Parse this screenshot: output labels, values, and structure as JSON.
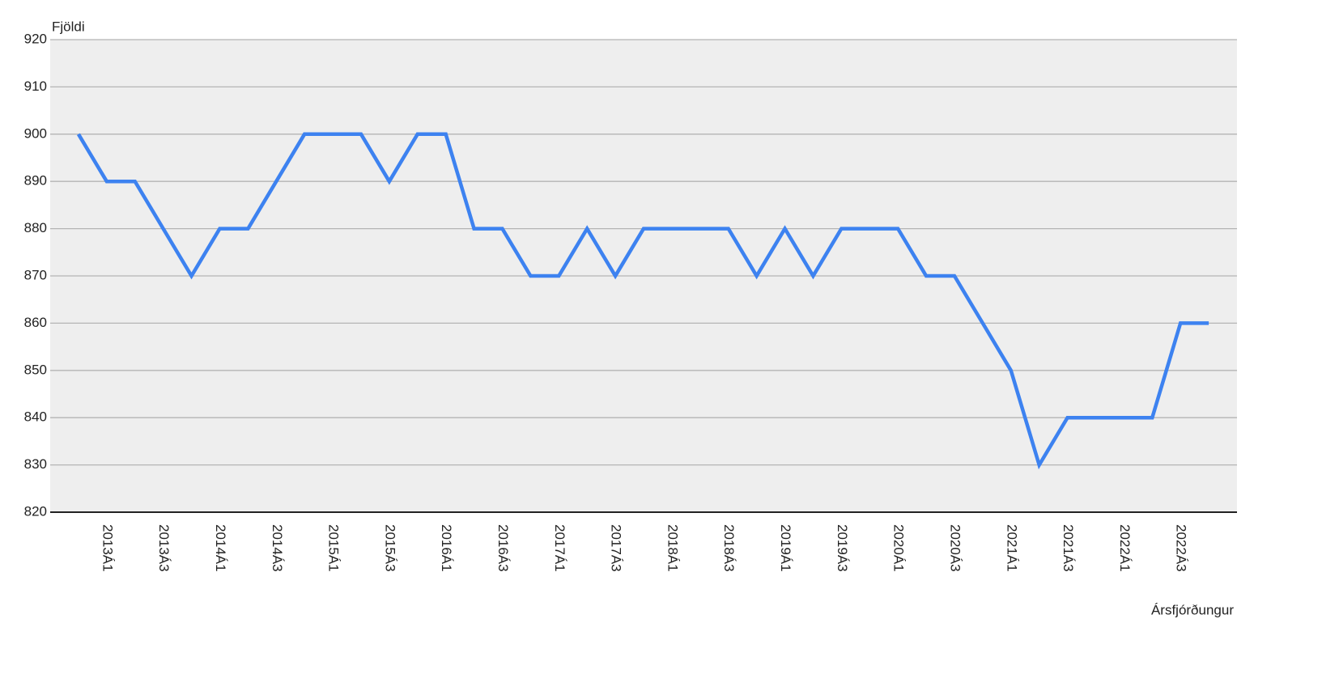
{
  "chart_data": {
    "type": "line",
    "y_label": "Fjöldi",
    "x_label": "Ársfjórðungur",
    "categories": [
      null,
      "2013Á1",
      null,
      "2013Á3",
      null,
      "2014Á1",
      null,
      "2014Á3",
      null,
      "2015Á1",
      null,
      "2015Á3",
      null,
      "2016Á1",
      null,
      "2016Á3",
      null,
      "2017Á1",
      null,
      "2017Á3",
      null,
      "2018Á1",
      null,
      "2018Á3",
      null,
      "2019Á1",
      null,
      "2019Á3",
      null,
      "2020Á1",
      null,
      "2020Á3",
      null,
      "2021Á1",
      null,
      "2021Á3",
      null,
      "2022Á1",
      null,
      "2022Á3",
      null
    ],
    "values": [
      900,
      890,
      890,
      880,
      870,
      880,
      880,
      890,
      900,
      900,
      900,
      890,
      900,
      900,
      880,
      880,
      870,
      870,
      880,
      870,
      880,
      880,
      880,
      880,
      870,
      880,
      870,
      880,
      880,
      880,
      870,
      870,
      860,
      850,
      830,
      840,
      840,
      840,
      840,
      860,
      860
    ],
    "color": "#3d82f0",
    "ylim": [
      820,
      920
    ],
    "yticks": [
      820,
      830,
      840,
      850,
      860,
      870,
      880,
      890,
      900,
      910,
      920
    ],
    "grid": true
  }
}
